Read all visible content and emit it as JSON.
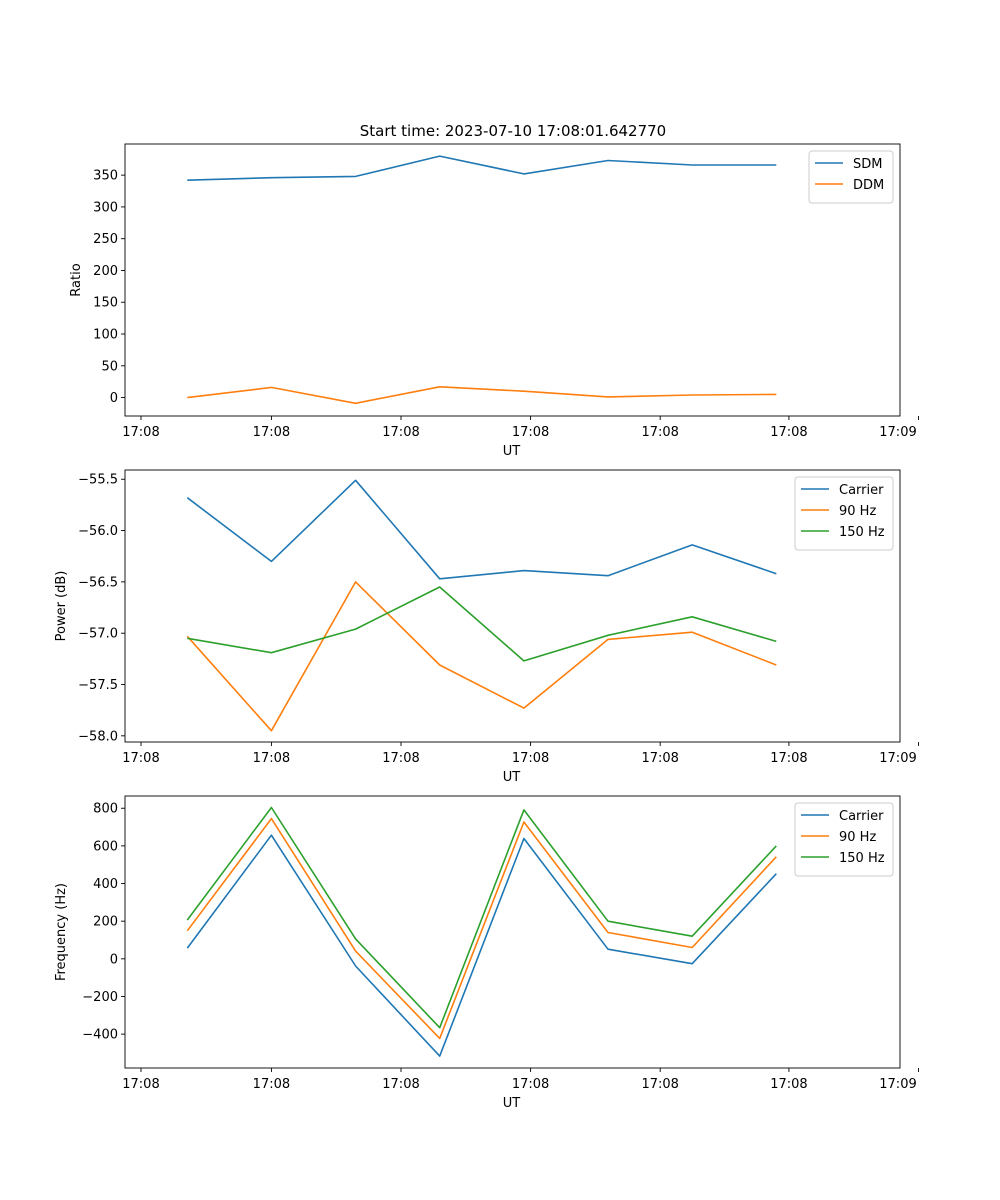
{
  "title": "Start time: 2023-07-10 17:08:01.642770",
  "chart_data": [
    {
      "type": "line",
      "title": "Start time: 2023-07-10 17:08:01.642770",
      "xlabel": "UT",
      "ylabel": "Ratio",
      "x": [
        1,
        2,
        3,
        4,
        5,
        6,
        7,
        8
      ],
      "xlim": [
        0.26,
        9.47
      ],
      "xticks": [
        0.45,
        2,
        3.54,
        5.08,
        6.62,
        8.15,
        9.69
      ],
      "xtick_labels": [
        "17:08",
        "17:08",
        "17:08",
        "17:08",
        "17:08",
        "17:08",
        "17:08"
      ],
      "xlabel_visible": [
        true,
        true,
        true,
        true,
        true,
        true,
        false
      ],
      "extra_xtick_label": "17:09",
      "ylim": [
        -29,
        399
      ],
      "yticks": [
        0,
        50,
        100,
        150,
        200,
        250,
        300,
        350
      ],
      "ytick_labels": [
        "0",
        "50",
        "100",
        "150",
        "200",
        "250",
        "300",
        "350"
      ],
      "legend_position": "top-right",
      "series": [
        {
          "name": "SDM",
          "color": "#1f77b4",
          "values": [
            342,
            346,
            348,
            380,
            352,
            373,
            366,
            366
          ]
        },
        {
          "name": "DDM",
          "color": "#ff7f0e",
          "values": [
            0,
            16,
            -9,
            17,
            10,
            1,
            4,
            5
          ]
        }
      ]
    },
    {
      "type": "line",
      "xlabel": "UT",
      "ylabel": "Power (dB)",
      "x": [
        1,
        2,
        3,
        4,
        5,
        6,
        7,
        8
      ],
      "xlim": [
        0.26,
        9.47
      ],
      "xticks": [
        0.45,
        2,
        3.54,
        5.08,
        6.62,
        8.15,
        9.69
      ],
      "xtick_labels": [
        "17:08",
        "17:08",
        "17:08",
        "17:08",
        "17:08",
        "17:08",
        "17:08"
      ],
      "xlabel_visible": [
        true,
        true,
        true,
        true,
        true,
        true,
        false
      ],
      "extra_xtick_label": "17:09",
      "ylim": [
        -58.06,
        -55.41
      ],
      "yticks": [
        -58.0,
        -57.5,
        -57.0,
        -56.5,
        -56.0,
        -55.5
      ],
      "ytick_labels": [
        "−58.0",
        "−57.5",
        "−57.0",
        "−56.5",
        "−56.0",
        "−55.5"
      ],
      "legend_position": "top-right",
      "series": [
        {
          "name": "Carrier",
          "color": "#1f77b4",
          "values": [
            -55.68,
            -56.3,
            -55.51,
            -56.47,
            -56.39,
            -56.44,
            -56.14,
            -56.42
          ]
        },
        {
          "name": "90 Hz",
          "color": "#ff7f0e",
          "values": [
            -57.03,
            -57.95,
            -56.5,
            -57.31,
            -57.73,
            -57.06,
            -56.99,
            -57.31
          ]
        },
        {
          "name": "150 Hz",
          "color": "#2ca02c",
          "values": [
            -57.05,
            -57.19,
            -56.96,
            -56.55,
            -57.27,
            -57.02,
            -56.84,
            -57.08
          ]
        }
      ]
    },
    {
      "type": "line",
      "xlabel": "UT",
      "ylabel": "Frequency (Hz)",
      "x": [
        1,
        2,
        3,
        4,
        5,
        6,
        7,
        8
      ],
      "xlim": [
        0.26,
        9.47
      ],
      "xticks": [
        0.45,
        2,
        3.54,
        5.08,
        6.62,
        8.15,
        9.69
      ],
      "xtick_labels": [
        "17:08",
        "17:08",
        "17:08",
        "17:08",
        "17:08",
        "17:08",
        "17:08"
      ],
      "xlabel_visible": [
        true,
        true,
        true,
        true,
        true,
        true,
        false
      ],
      "extra_xtick_label": "17:09",
      "ylim": [
        -580,
        865
      ],
      "yticks": [
        -400,
        -200,
        0,
        200,
        400,
        600,
        800
      ],
      "ytick_labels": [
        "−400",
        "−200",
        "0",
        "200",
        "400",
        "600",
        "800"
      ],
      "legend_position": "top-right",
      "series": [
        {
          "name": "Carrier",
          "color": "#1f77b4",
          "values": [
            57,
            657,
            -38,
            -517,
            639,
            51,
            -26,
            452
          ]
        },
        {
          "name": "90 Hz",
          "color": "#ff7f0e",
          "values": [
            149,
            745,
            41,
            -423,
            727,
            140,
            60,
            542
          ]
        },
        {
          "name": "150 Hz",
          "color": "#2ca02c",
          "values": [
            206,
            804,
            106,
            -366,
            791,
            200,
            120,
            600
          ]
        }
      ]
    }
  ]
}
